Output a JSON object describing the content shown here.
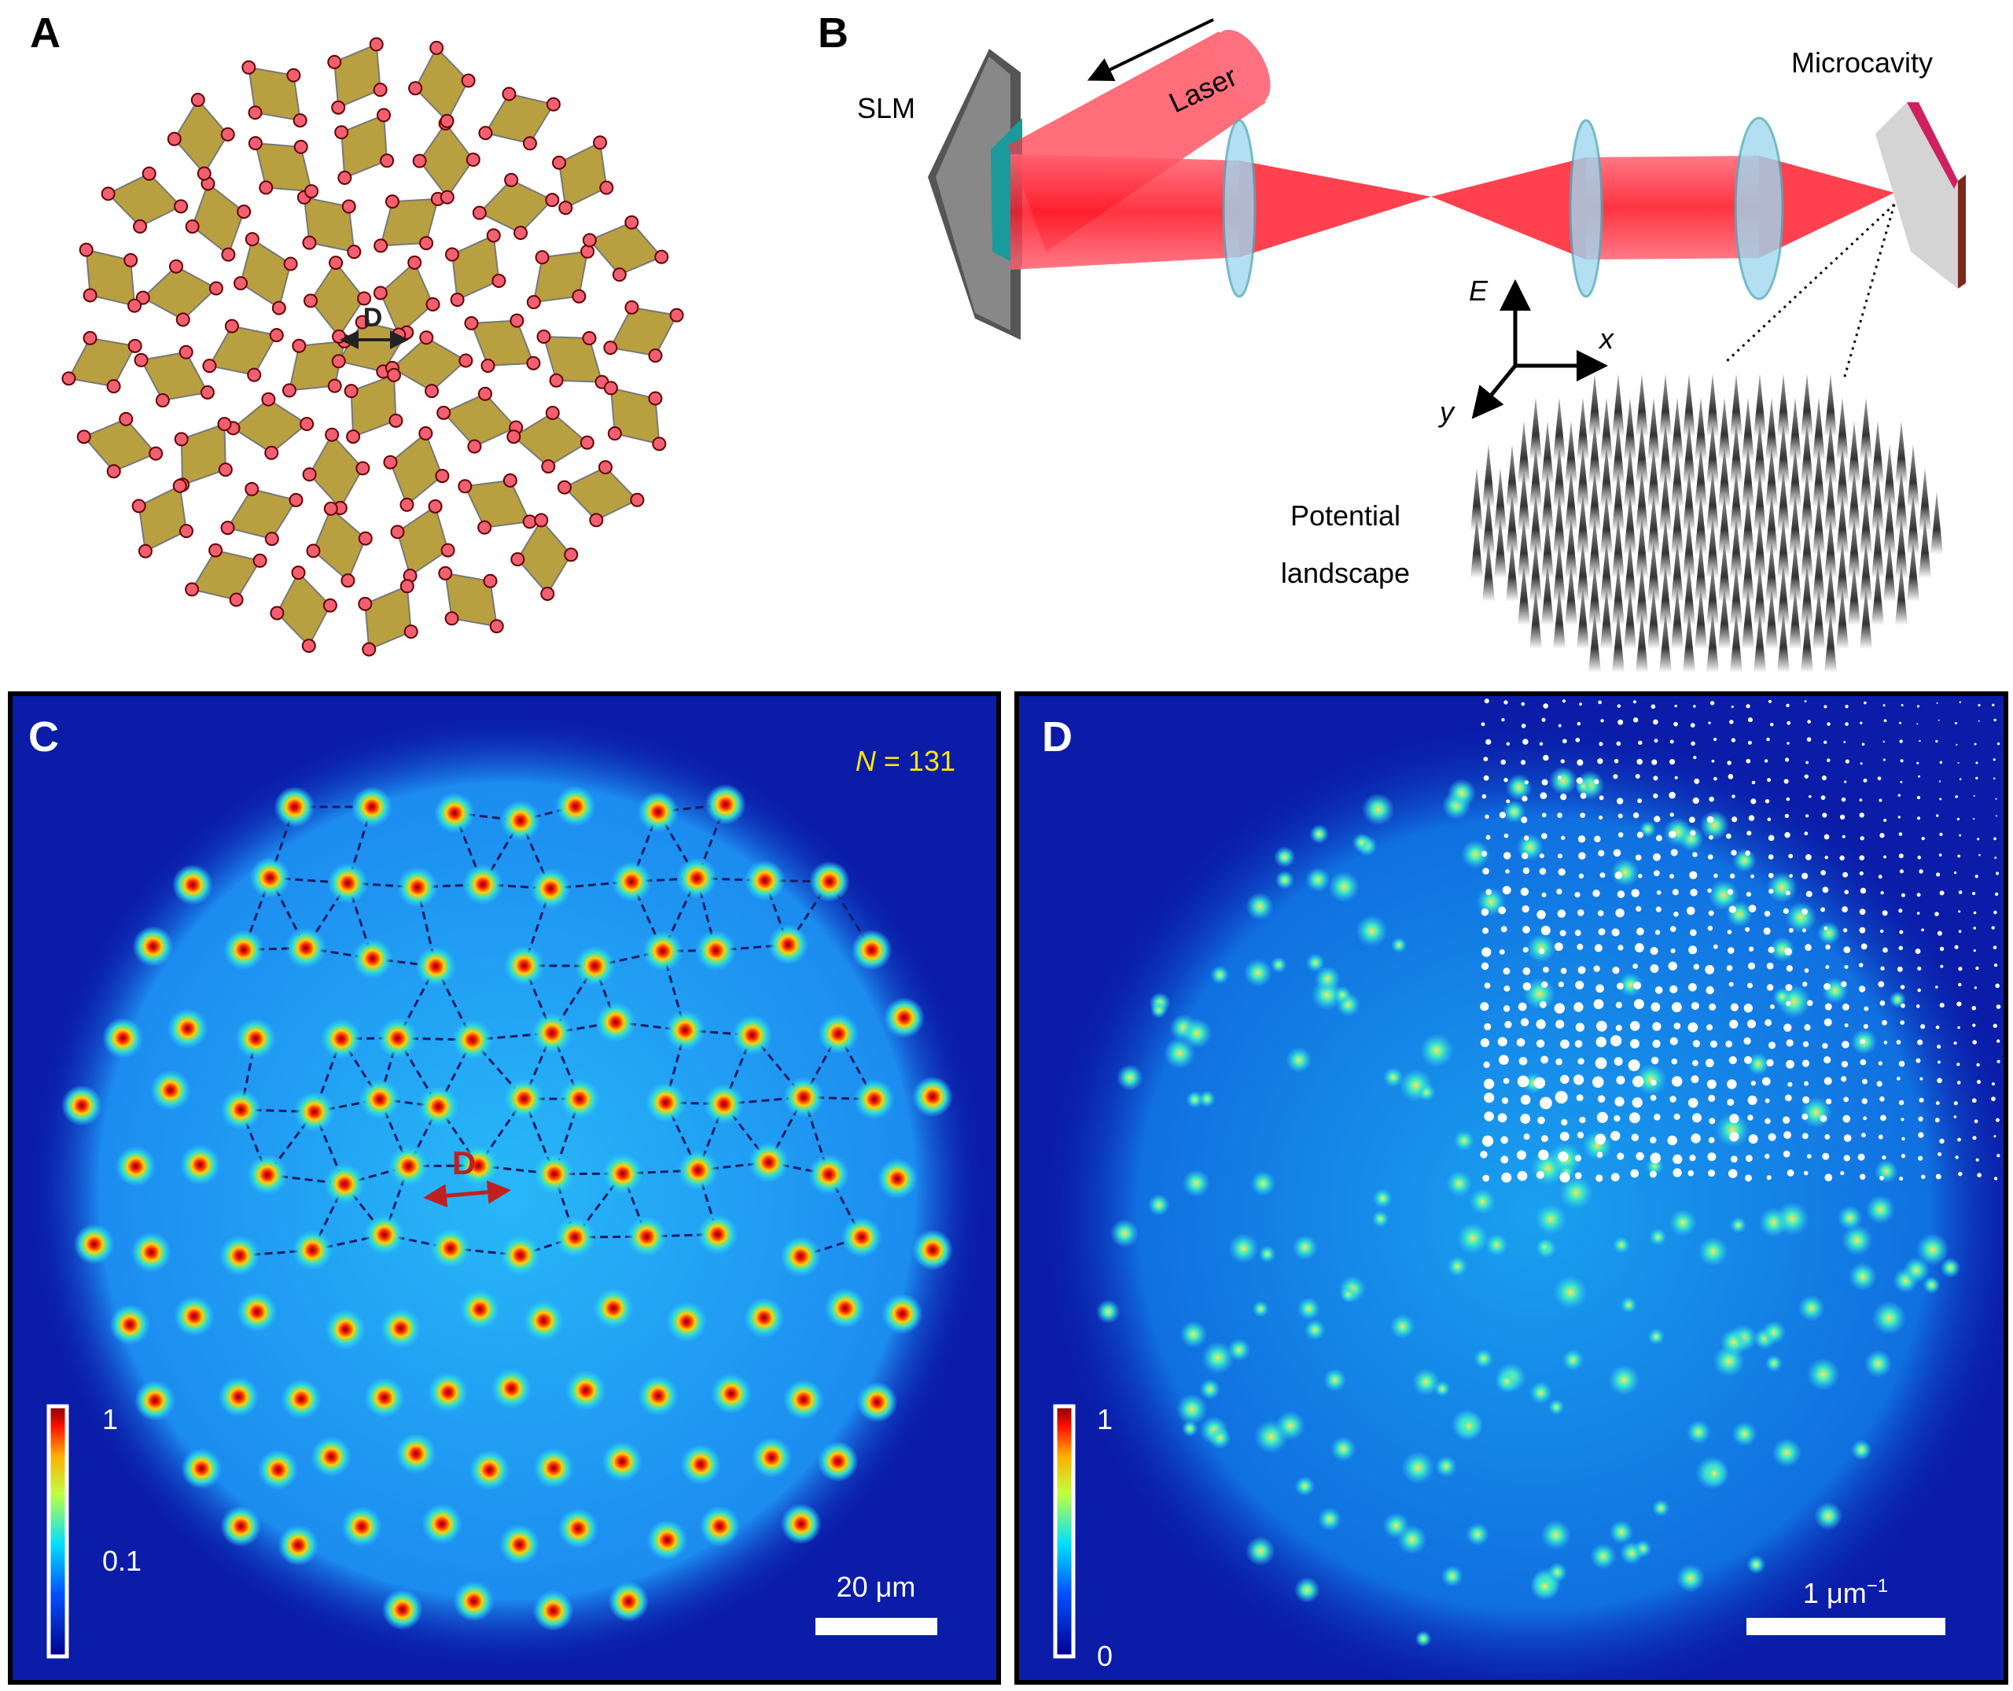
{
  "panel_a": {
    "label": "A",
    "distance_label": "D"
  },
  "panel_b": {
    "label": "B",
    "slm": "SLM",
    "laser": "Laser",
    "microcavity": "Microcavity",
    "axis_e": "E",
    "axis_x": "x",
    "axis_y": "y",
    "potential": [
      "Potential",
      "landscape"
    ]
  },
  "panel_c": {
    "label": "C",
    "count_symbol": "N",
    "count_text": " = 131",
    "distance_label": "D",
    "colorbar_ticks": [
      "1",
      "0.1"
    ],
    "scale_bar": "20 μm"
  },
  "panel_d": {
    "label": "D",
    "colorbar_ticks": [
      "1",
      "0"
    ],
    "scale_bar": "1 μm",
    "scale_bar_exponent": "−1"
  }
}
